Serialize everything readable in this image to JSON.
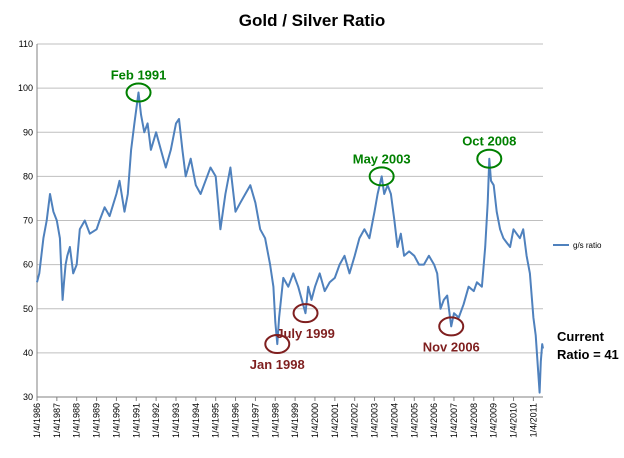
{
  "chart_data": {
    "type": "line",
    "title": "Gold / Silver Ratio",
    "xlabel": "",
    "ylabel": "",
    "ylim": [
      30,
      110
    ],
    "yticks": [
      30,
      40,
      50,
      60,
      70,
      80,
      90,
      100,
      110
    ],
    "xlim": [
      "1986-01-04",
      "2011-06-30"
    ],
    "xticks": [
      "1/4/1986",
      "1/4/1987",
      "1/4/1988",
      "1/4/1989",
      "1/4/1990",
      "1/4/1991",
      "1/4/1992",
      "1/4/1993",
      "1/4/1994",
      "1/4/1995",
      "1/4/1996",
      "1/4/1997",
      "1/4/1998",
      "1/4/1999",
      "1/4/2000",
      "1/4/2001",
      "1/4/2002",
      "1/4/2003",
      "1/4/2004",
      "1/4/2005",
      "1/4/2006",
      "1/4/2007",
      "1/4/2008",
      "1/4/2009",
      "1/4/2010",
      "1/4/2011"
    ],
    "grid": true,
    "legend": "right",
    "series": [
      {
        "name": "g/s ratio",
        "color": "#4f81bd",
        "points": [
          [
            "1986-01-04",
            56
          ],
          [
            "1986-02-15",
            58
          ],
          [
            "1986-05-01",
            66
          ],
          [
            "1986-07-01",
            70
          ],
          [
            "1986-09-01",
            76
          ],
          [
            "1986-11-01",
            72
          ],
          [
            "1987-01-04",
            70
          ],
          [
            "1987-03-01",
            66
          ],
          [
            "1987-04-20",
            52
          ],
          [
            "1987-05-15",
            56
          ],
          [
            "1987-06-15",
            60
          ],
          [
            "1987-07-15",
            62
          ],
          [
            "1987-09-01",
            64
          ],
          [
            "1987-11-01",
            58
          ],
          [
            "1988-01-04",
            60
          ],
          [
            "1988-03-01",
            68
          ],
          [
            "1988-06-01",
            70
          ],
          [
            "1988-09-01",
            67
          ],
          [
            "1989-01-04",
            68
          ],
          [
            "1989-03-01",
            70
          ],
          [
            "1989-06-01",
            73
          ],
          [
            "1989-09-01",
            71
          ],
          [
            "1990-01-04",
            76
          ],
          [
            "1990-03-01",
            79
          ],
          [
            "1990-06-01",
            72
          ],
          [
            "1990-08-01",
            76
          ],
          [
            "1990-10-01",
            86
          ],
          [
            "1990-12-01",
            92
          ],
          [
            "1991-02-15",
            99
          ],
          [
            "1991-04-01",
            94
          ],
          [
            "1991-06-01",
            90
          ],
          [
            "1991-08-01",
            92
          ],
          [
            "1991-10-01",
            86
          ],
          [
            "1992-01-04",
            90
          ],
          [
            "1992-04-01",
            86
          ],
          [
            "1992-07-01",
            82
          ],
          [
            "1992-10-01",
            86
          ],
          [
            "1993-01-04",
            92
          ],
          [
            "1993-03-01",
            93
          ],
          [
            "1993-05-01",
            86
          ],
          [
            "1993-07-01",
            80
          ],
          [
            "1993-10-01",
            84
          ],
          [
            "1994-01-04",
            78
          ],
          [
            "1994-04-01",
            76
          ],
          [
            "1994-07-01",
            79
          ],
          [
            "1994-10-01",
            82
          ],
          [
            "1995-01-04",
            80
          ],
          [
            "1995-04-01",
            68
          ],
          [
            "1995-07-01",
            76
          ],
          [
            "1995-10-01",
            82
          ],
          [
            "1996-01-04",
            72
          ],
          [
            "1996-04-01",
            74
          ],
          [
            "1996-07-01",
            76
          ],
          [
            "1996-10-01",
            78
          ],
          [
            "1997-01-04",
            74
          ],
          [
            "1997-04-01",
            68
          ],
          [
            "1997-07-01",
            66
          ],
          [
            "1997-10-01",
            60
          ],
          [
            "1997-12-01",
            55
          ],
          [
            "1998-01-04",
            47
          ],
          [
            "1998-02-10",
            42
          ],
          [
            "1998-03-15",
            48
          ],
          [
            "1998-06-01",
            57
          ],
          [
            "1998-09-01",
            55
          ],
          [
            "1998-12-01",
            58
          ],
          [
            "1999-03-01",
            55
          ],
          [
            "1999-07-15",
            49
          ],
          [
            "1999-09-01",
            55
          ],
          [
            "1999-11-01",
            52
          ],
          [
            "2000-01-04",
            55
          ],
          [
            "2000-04-01",
            58
          ],
          [
            "2000-07-01",
            54
          ],
          [
            "2000-10-01",
            56
          ],
          [
            "2001-01-04",
            57
          ],
          [
            "2001-04-01",
            60
          ],
          [
            "2001-07-01",
            62
          ],
          [
            "2001-10-01",
            58
          ],
          [
            "2002-01-04",
            62
          ],
          [
            "2002-04-01",
            66
          ],
          [
            "2002-07-01",
            68
          ],
          [
            "2002-10-01",
            66
          ],
          [
            "2003-01-04",
            72
          ],
          [
            "2003-03-01",
            76
          ],
          [
            "2003-05-15",
            80
          ],
          [
            "2003-07-01",
            76
          ],
          [
            "2003-09-01",
            78
          ],
          [
            "2003-11-01",
            76
          ],
          [
            "2004-01-04",
            70
          ],
          [
            "2004-03-01",
            64
          ],
          [
            "2004-05-01",
            67
          ],
          [
            "2004-07-01",
            62
          ],
          [
            "2004-10-01",
            63
          ],
          [
            "2005-01-04",
            62
          ],
          [
            "2005-04-01",
            60
          ],
          [
            "2005-07-01",
            60
          ],
          [
            "2005-10-01",
            62
          ],
          [
            "2006-01-04",
            60
          ],
          [
            "2006-03-01",
            58
          ],
          [
            "2006-05-01",
            50
          ],
          [
            "2006-07-01",
            52
          ],
          [
            "2006-09-01",
            53
          ],
          [
            "2006-11-15",
            46
          ],
          [
            "2007-01-04",
            49
          ],
          [
            "2007-04-01",
            48
          ],
          [
            "2007-07-01",
            51
          ],
          [
            "2007-10-01",
            55
          ],
          [
            "2008-01-04",
            54
          ],
          [
            "2008-03-01",
            56
          ],
          [
            "2008-06-01",
            55
          ],
          [
            "2008-08-01",
            64
          ],
          [
            "2008-09-15",
            74
          ],
          [
            "2008-10-15",
            84
          ],
          [
            "2008-11-15",
            79
          ],
          [
            "2009-01-04",
            78
          ],
          [
            "2009-03-01",
            72
          ],
          [
            "2009-05-01",
            68
          ],
          [
            "2009-07-01",
            66
          ],
          [
            "2009-09-01",
            65
          ],
          [
            "2009-11-01",
            64
          ],
          [
            "2010-01-04",
            68
          ],
          [
            "2010-03-01",
            67
          ],
          [
            "2010-05-01",
            66
          ],
          [
            "2010-07-01",
            68
          ],
          [
            "2010-09-01",
            62
          ],
          [
            "2010-11-01",
            58
          ],
          [
            "2011-01-04",
            48
          ],
          [
            "2011-02-15",
            44
          ],
          [
            "2011-04-01",
            36
          ],
          [
            "2011-04-28",
            31
          ],
          [
            "2011-05-20",
            38
          ],
          [
            "2011-06-15",
            42
          ],
          [
            "2011-06-30",
            41
          ]
        ]
      }
    ],
    "annotations": [
      {
        "text": "Feb 1991",
        "date": "1991-02-15",
        "value": 99,
        "color": "#008000",
        "placement": "above"
      },
      {
        "text": "May 2003",
        "date": "2003-05-15",
        "value": 80,
        "color": "#008000",
        "placement": "above"
      },
      {
        "text": "Oct 2008",
        "date": "2008-10-15",
        "value": 84,
        "color": "#008000",
        "placement": "above"
      },
      {
        "text": "Jan 1998",
        "date": "1998-02-10",
        "value": 42,
        "color": "#7f1f1f",
        "placement": "below"
      },
      {
        "text": "July 1999",
        "date": "1999-07-15",
        "value": 49,
        "color": "#7f1f1f",
        "placement": "below"
      },
      {
        "text": "Nov 2006",
        "date": "2006-11-15",
        "value": 46,
        "color": "#7f1f1f",
        "placement": "below"
      }
    ],
    "current_ratio_lines": [
      "Current",
      "Ratio = 41"
    ]
  }
}
